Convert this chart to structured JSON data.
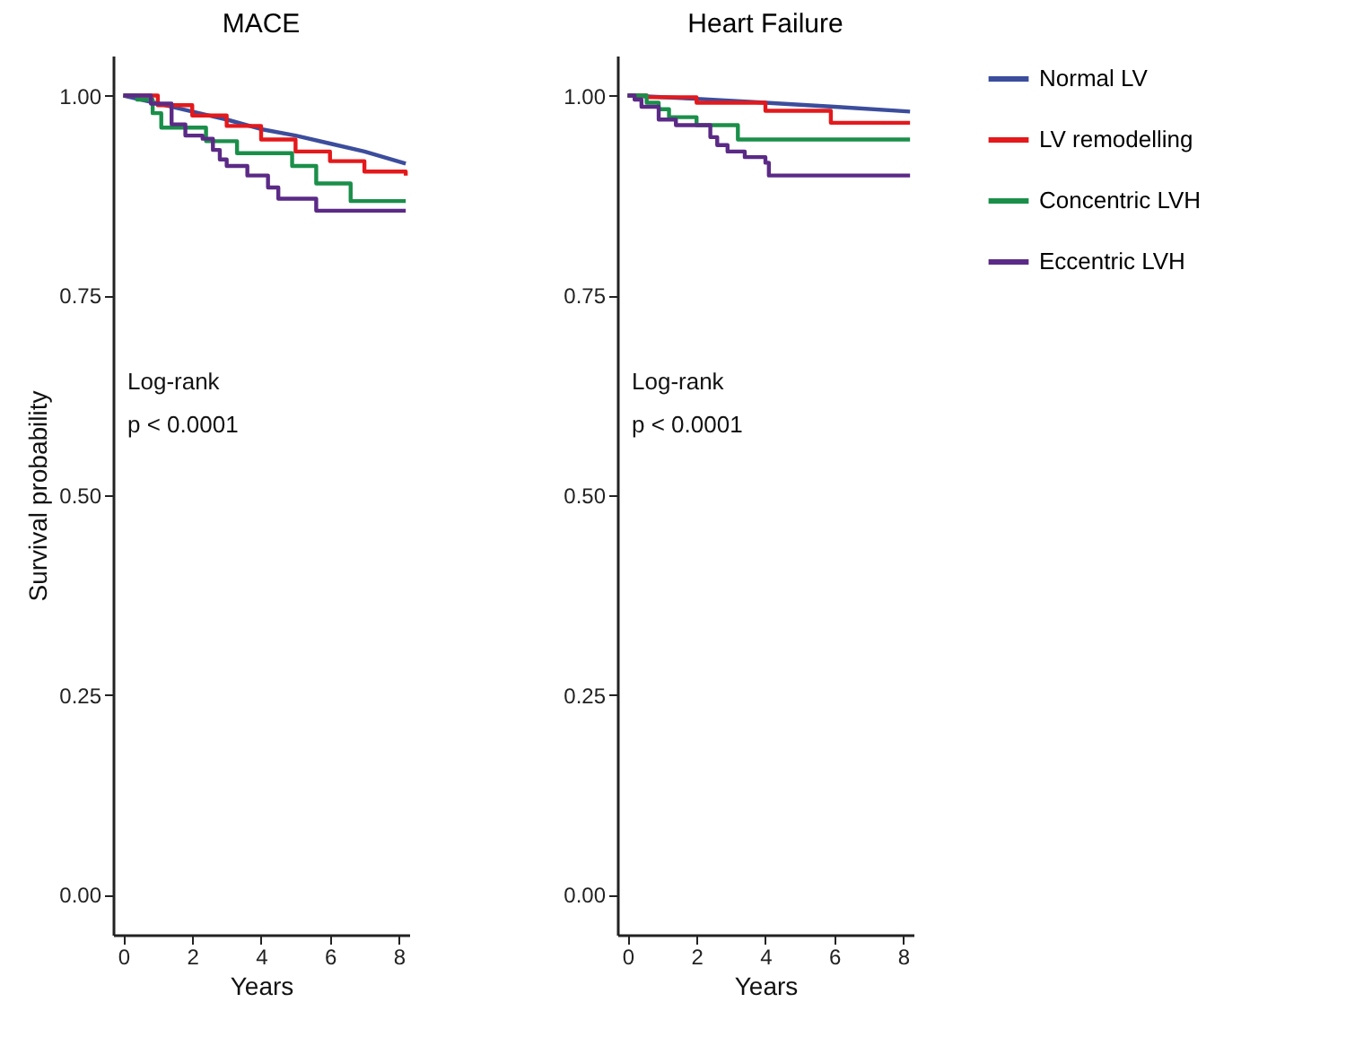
{
  "chart_data": [
    {
      "type": "step",
      "title": "MACE",
      "xlabel": "Years",
      "ylabel": "Survival probability",
      "annotations": [
        "Log-rank",
        "p < 0.0001"
      ],
      "legend": "right",
      "xlim": [
        -0.3,
        8.3
      ],
      "xticks": [
        0,
        2,
        4,
        6,
        8
      ],
      "ylim": [
        -0.05,
        1.05
      ],
      "yticks": [
        {
          "value": 0,
          "label": "0.00"
        },
        {
          "value": 0.25,
          "label": "0.25"
        },
        {
          "value": 0.5,
          "label": "0.50"
        },
        {
          "value": 0.75,
          "label": "0.75"
        },
        {
          "value": 1,
          "label": "1.00"
        }
      ],
      "series": [
        {
          "name": "Normal LV",
          "color": "#3c4d9c",
          "type": "line",
          "x": [
            0,
            1,
            2,
            3,
            4,
            5,
            6,
            7,
            8.2
          ],
          "values": [
            1,
            0.99,
            0.98,
            0.97,
            0.958,
            0.95,
            0.94,
            0.93,
            0.915
          ]
        },
        {
          "name": "LV remodelling",
          "color": "#e3191c",
          "x": [
            0,
            1,
            2,
            3,
            4,
            5,
            6,
            7,
            8.2
          ],
          "values": [
            1,
            0.988,
            0.975,
            0.962,
            0.945,
            0.93,
            0.918,
            0.905,
            0.9
          ]
        },
        {
          "name": "Concentric LVH",
          "color": "#1b8f4a",
          "x": [
            0,
            0.4,
            0.85,
            1.1,
            2.4,
            3.3,
            4.9,
            5.6,
            6.6,
            8.2
          ],
          "values": [
            1,
            0.995,
            0.978,
            0.96,
            0.943,
            0.928,
            0.912,
            0.89,
            0.868,
            0.868
          ]
        },
        {
          "name": "Eccentric LVH",
          "color": "#5b2a86",
          "x": [
            0,
            0.8,
            1.4,
            1.8,
            2.3,
            2.6,
            2.8,
            3.0,
            3.6,
            4.2,
            4.5,
            5.6,
            8.2
          ],
          "values": [
            1,
            0.99,
            0.964,
            0.95,
            0.946,
            0.932,
            0.92,
            0.912,
            0.9,
            0.885,
            0.871,
            0.856,
            0.856
          ]
        }
      ]
    },
    {
      "type": "step",
      "title": "Heart Failure",
      "xlabel": "Years",
      "annotations": [
        "Log-rank",
        "p < 0.0001"
      ],
      "legend": "right",
      "xlim": [
        -0.3,
        8.3
      ],
      "xticks": [
        0,
        2,
        4,
        6,
        8
      ],
      "ylim": [
        -0.05,
        1.05
      ],
      "yticks": [
        {
          "value": 0,
          "label": "0.00"
        },
        {
          "value": 0.25,
          "label": "0.25"
        },
        {
          "value": 0.5,
          "label": "0.50"
        },
        {
          "value": 0.75,
          "label": "0.75"
        },
        {
          "value": 1,
          "label": "1.00"
        }
      ],
      "series": [
        {
          "name": "Normal LV",
          "color": "#3c4d9c",
          "type": "line",
          "x": [
            0,
            2,
            4,
            6,
            8.2
          ],
          "values": [
            1,
            0.996,
            0.991,
            0.986,
            0.98
          ]
        },
        {
          "name": "LV remodelling",
          "color": "#e3191c",
          "x": [
            0,
            0.55,
            2.0,
            4.0,
            5.9,
            8.2
          ],
          "values": [
            1,
            0.998,
            0.991,
            0.981,
            0.966,
            0.966
          ]
        },
        {
          "name": "Concentric LVH",
          "color": "#1b8f4a",
          "x": [
            0,
            0.55,
            0.9,
            1.2,
            2.0,
            3.2,
            8.2
          ],
          "values": [
            1,
            0.991,
            0.983,
            0.973,
            0.963,
            0.945,
            0.945
          ]
        },
        {
          "name": "Eccentric LVH",
          "color": "#5b2a86",
          "x": [
            0,
            0.2,
            0.4,
            0.9,
            1.4,
            2.4,
            2.6,
            2.9,
            3.4,
            4.0,
            4.1,
            8.2
          ],
          "values": [
            1,
            0.995,
            0.986,
            0.97,
            0.963,
            0.948,
            0.938,
            0.93,
            0.923,
            0.916,
            0.9,
            0.9
          ]
        }
      ]
    }
  ]
}
